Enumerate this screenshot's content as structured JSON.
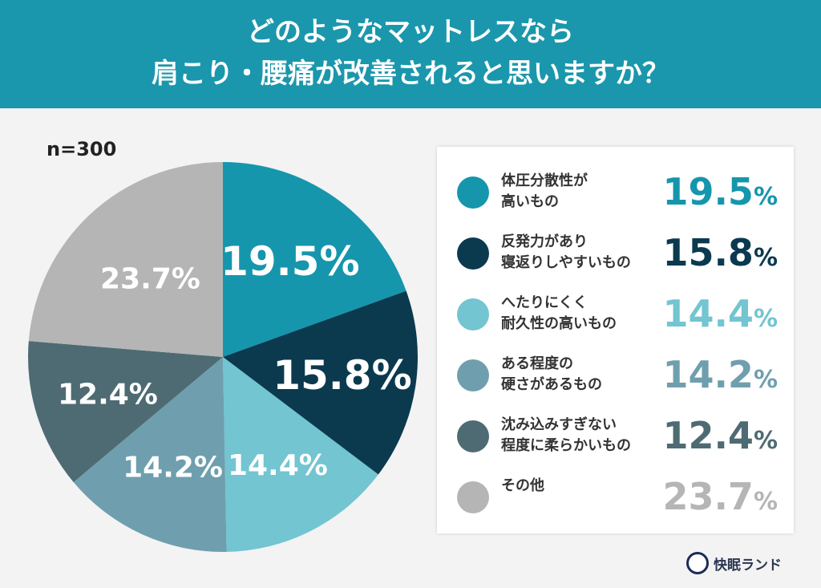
{
  "title_lines": [
    "どのようなマットレスなら",
    "肩こり・腰痛が改善されると思いますか？"
  ],
  "sample": "n=300",
  "brand": "快眠ランド",
  "chart_data": {
    "type": "pie",
    "start": "top, clockwise",
    "legend_placement": "right",
    "categories": [
      "体圧分散性が\n高いもの",
      "反発力があり\n寝返りしやすいもの",
      "へたりにくく\n耐久性の高いもの",
      "ある程度の\n硬さがあるもの",
      "沈み込みすぎない\n程度に柔らかいもの",
      "その他"
    ],
    "values": [
      19.5,
      15.8,
      14.4,
      14.2,
      12.4,
      23.7
    ],
    "labels": [
      "19.5",
      "15.8",
      "14.4",
      "14.2",
      "12.4",
      "23.7"
    ],
    "unit": "%",
    "colors": [
      "#1596ad",
      "#0b3a4f",
      "#72c5d1",
      "#6f9fae",
      "#4e6b73",
      "#b5b5b5"
    ]
  }
}
